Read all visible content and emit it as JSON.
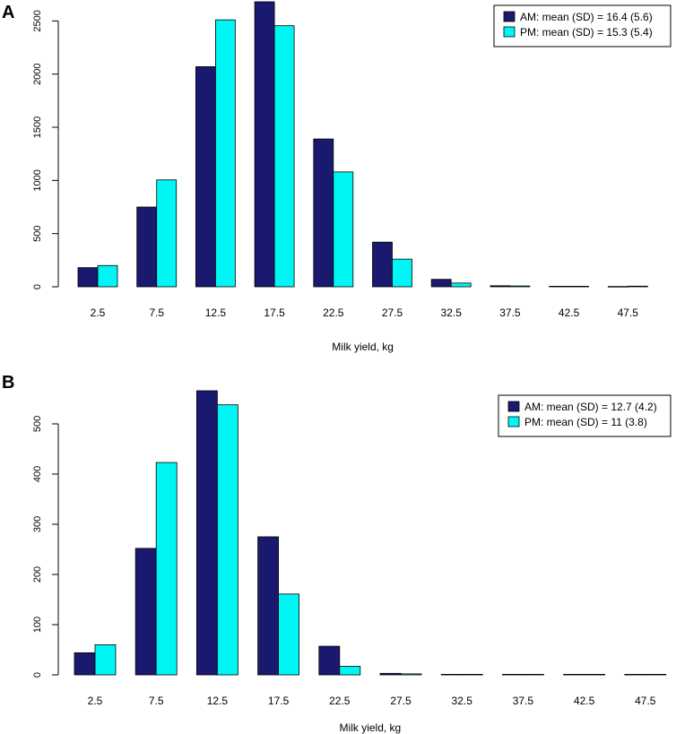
{
  "colors": {
    "am": "#191970",
    "pm": "#00F5F5",
    "axis": "#000000"
  },
  "chart_data": [
    {
      "panel_label": "A",
      "type": "bar",
      "title": "",
      "xlabel": "Milk yield, kg",
      "ylabel": "",
      "categories": [
        "2.5",
        "7.5",
        "12.5",
        "17.5",
        "22.5",
        "27.5",
        "32.5",
        "37.5",
        "42.5",
        "47.5"
      ],
      "series": [
        {
          "name": "AM: mean (SD) = 16.4 (5.6)",
          "values": [
            180,
            750,
            2070,
            2680,
            1390,
            420,
            70,
            10,
            5,
            3
          ]
        },
        {
          "name": "PM: mean (SD) = 15.3 (5.4)",
          "values": [
            200,
            1005,
            2510,
            2455,
            1080,
            260,
            35,
            8,
            5,
            6
          ]
        }
      ],
      "ylim": [
        0,
        2680
      ],
      "yticks": [
        "0",
        "500",
        "1000",
        "1500",
        "2000",
        "2500"
      ],
      "legend_position": "top-right",
      "grid": false
    },
    {
      "panel_label": "B",
      "type": "bar",
      "title": "",
      "xlabel": "Milk yield, kg",
      "ylabel": "",
      "categories": [
        "2.5",
        "7.5",
        "12.5",
        "17.5",
        "22.5",
        "27.5",
        "32.5",
        "37.5",
        "42.5",
        "47.5"
      ],
      "series": [
        {
          "name": "AM: mean (SD) = 12.7 (4.2)",
          "values": [
            44,
            252,
            566,
            275,
            57,
            3,
            1,
            1,
            1,
            1
          ]
        },
        {
          "name": "PM: mean (SD) = 11 (3.8)",
          "values": [
            60,
            423,
            538,
            161,
            17,
            2,
            1,
            1,
            1,
            1
          ]
        }
      ],
      "ylim": [
        0,
        566
      ],
      "yticks": [
        "0",
        "100",
        "200",
        "300",
        "400",
        "500"
      ],
      "legend_position": "top-right",
      "grid": false
    }
  ]
}
